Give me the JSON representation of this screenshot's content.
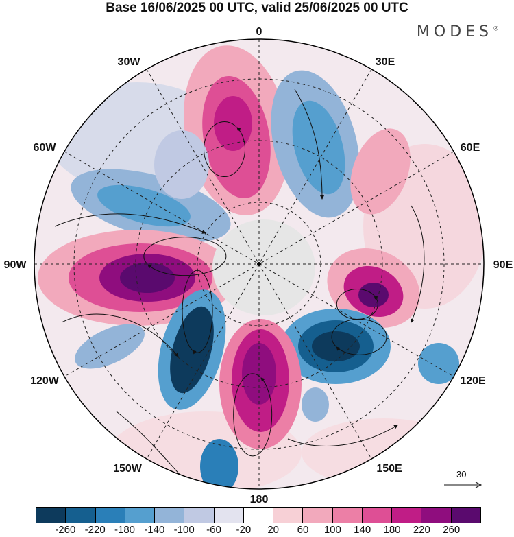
{
  "title": "Base 16/06/2025 00 UTC, valid 25/06/2025 00 UTC",
  "brand": "MODES",
  "brand_mark": "®",
  "longitude_labels": {
    "top": "0",
    "top_right": "30E",
    "right_upper": "60E",
    "right": "90E",
    "right_lower": "120E",
    "bottom_right": "150E",
    "bottom": "180",
    "bottom_left": "150W",
    "left_lower": "120W",
    "left": "90W",
    "left_upper": "60W",
    "top_left": "30W"
  },
  "reference_vector": "30",
  "colorbar": {
    "colors": [
      "#0d3a5c",
      "#155f8f",
      "#2a7fb8",
      "#559fcf",
      "#93b4d8",
      "#c0c9e3",
      "#e3e3ef",
      "#ffffff",
      "#f7d0d6",
      "#f2a9bc",
      "#ec7fa6",
      "#de4f95",
      "#c01d86",
      "#8f0d7e",
      "#5a0a6e"
    ],
    "tick_labels": [
      "-260",
      "-220",
      "-180",
      "-140",
      "-100",
      "-60",
      "-20",
      "20",
      "60",
      "100",
      "140",
      "180",
      "220",
      "260"
    ]
  },
  "icons": {
    "arrow": "vector-arrow-icon"
  }
}
